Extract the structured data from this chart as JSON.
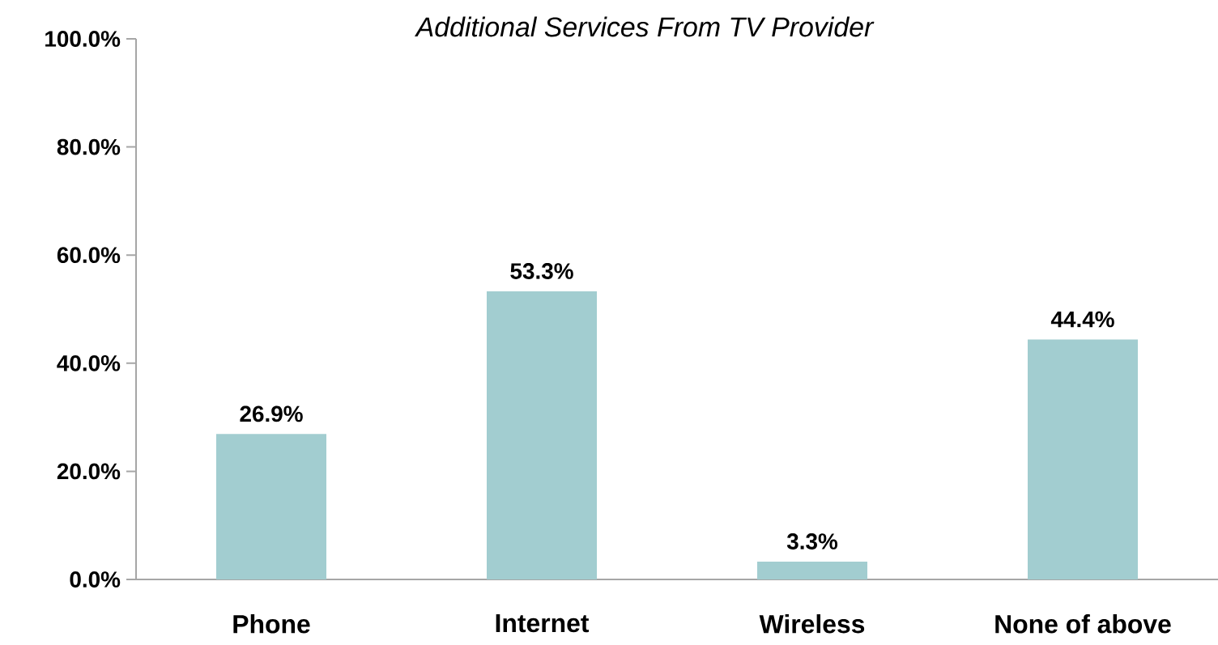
{
  "chart_data": {
    "type": "bar",
    "title": "Additional Services From TV Provider",
    "categories": [
      "Phone",
      "Internet",
      "Wireless",
      "None of above"
    ],
    "values": [
      26.9,
      53.3,
      3.3,
      44.4
    ],
    "value_labels": [
      "26.9%",
      "53.3%",
      "3.3%",
      "44.4%"
    ],
    "color": "#a2cdd0",
    "ylim": [
      0,
      100
    ],
    "yticks": [
      {
        "value": 0,
        "label": "0.0%"
      },
      {
        "value": 20,
        "label": "20.0%"
      },
      {
        "value": 40,
        "label": "40.0%"
      },
      {
        "value": 60,
        "label": "60.0%"
      },
      {
        "value": 80,
        "label": "80.0%"
      },
      {
        "value": 100,
        "label": "100.0%"
      }
    ]
  }
}
